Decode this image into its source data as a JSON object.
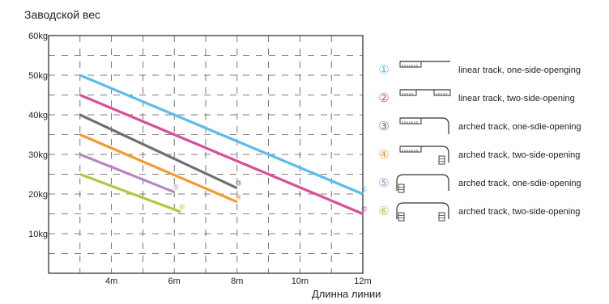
{
  "chart_data": {
    "type": "line",
    "ylabel": "Заводской вес",
    "xlabel": "Длинна линии",
    "x_ticks": [
      "4m",
      "6m",
      "8m",
      "10m",
      "12m"
    ],
    "y_ticks": [
      "10kg",
      "20kg",
      "30kg",
      "40kg",
      "50kg",
      "60kg"
    ],
    "xlim": [
      2,
      12
    ],
    "ylim": [
      0,
      60
    ],
    "grid": true,
    "series": [
      {
        "marker": "①",
        "color": "#5bbde8",
        "x": [
          3,
          12
        ],
        "y": [
          50,
          20
        ]
      },
      {
        "marker": "②",
        "color": "#d94f95",
        "x": [
          3,
          12
        ],
        "y": [
          45,
          15
        ]
      },
      {
        "marker": "③",
        "color": "#707070",
        "x": [
          3,
          8
        ],
        "y": [
          40,
          21.5
        ]
      },
      {
        "marker": "④",
        "color": "#f39a2c",
        "x": [
          3,
          8
        ],
        "y": [
          35,
          18
        ]
      },
      {
        "marker": "⑤",
        "color": "#b886c4",
        "x": [
          3,
          6
        ],
        "y": [
          30,
          20.5
        ]
      },
      {
        "marker": "⑥",
        "color": "#a9cc3f",
        "x": [
          3,
          6.2
        ],
        "y": [
          25,
          15.5
        ]
      }
    ],
    "legend": [
      {
        "marker": "①",
        "label": "linear track, one-side-openging",
        "icon": "linear-one"
      },
      {
        "marker": "②",
        "label": "linear track, two-side-opening",
        "icon": "linear-two"
      },
      {
        "marker": "③",
        "label": "arched track, one-sdie-opening",
        "icon": "arched-one"
      },
      {
        "marker": "④",
        "label": "arched track, two-side-opening",
        "icon": "arched-two"
      },
      {
        "marker": "⑤",
        "label": "arched track, one-sdie-opening",
        "icon": "arched-one-small"
      },
      {
        "marker": "⑥",
        "label": "arched track, two-side-opening",
        "icon": "arched-two-small"
      }
    ]
  }
}
